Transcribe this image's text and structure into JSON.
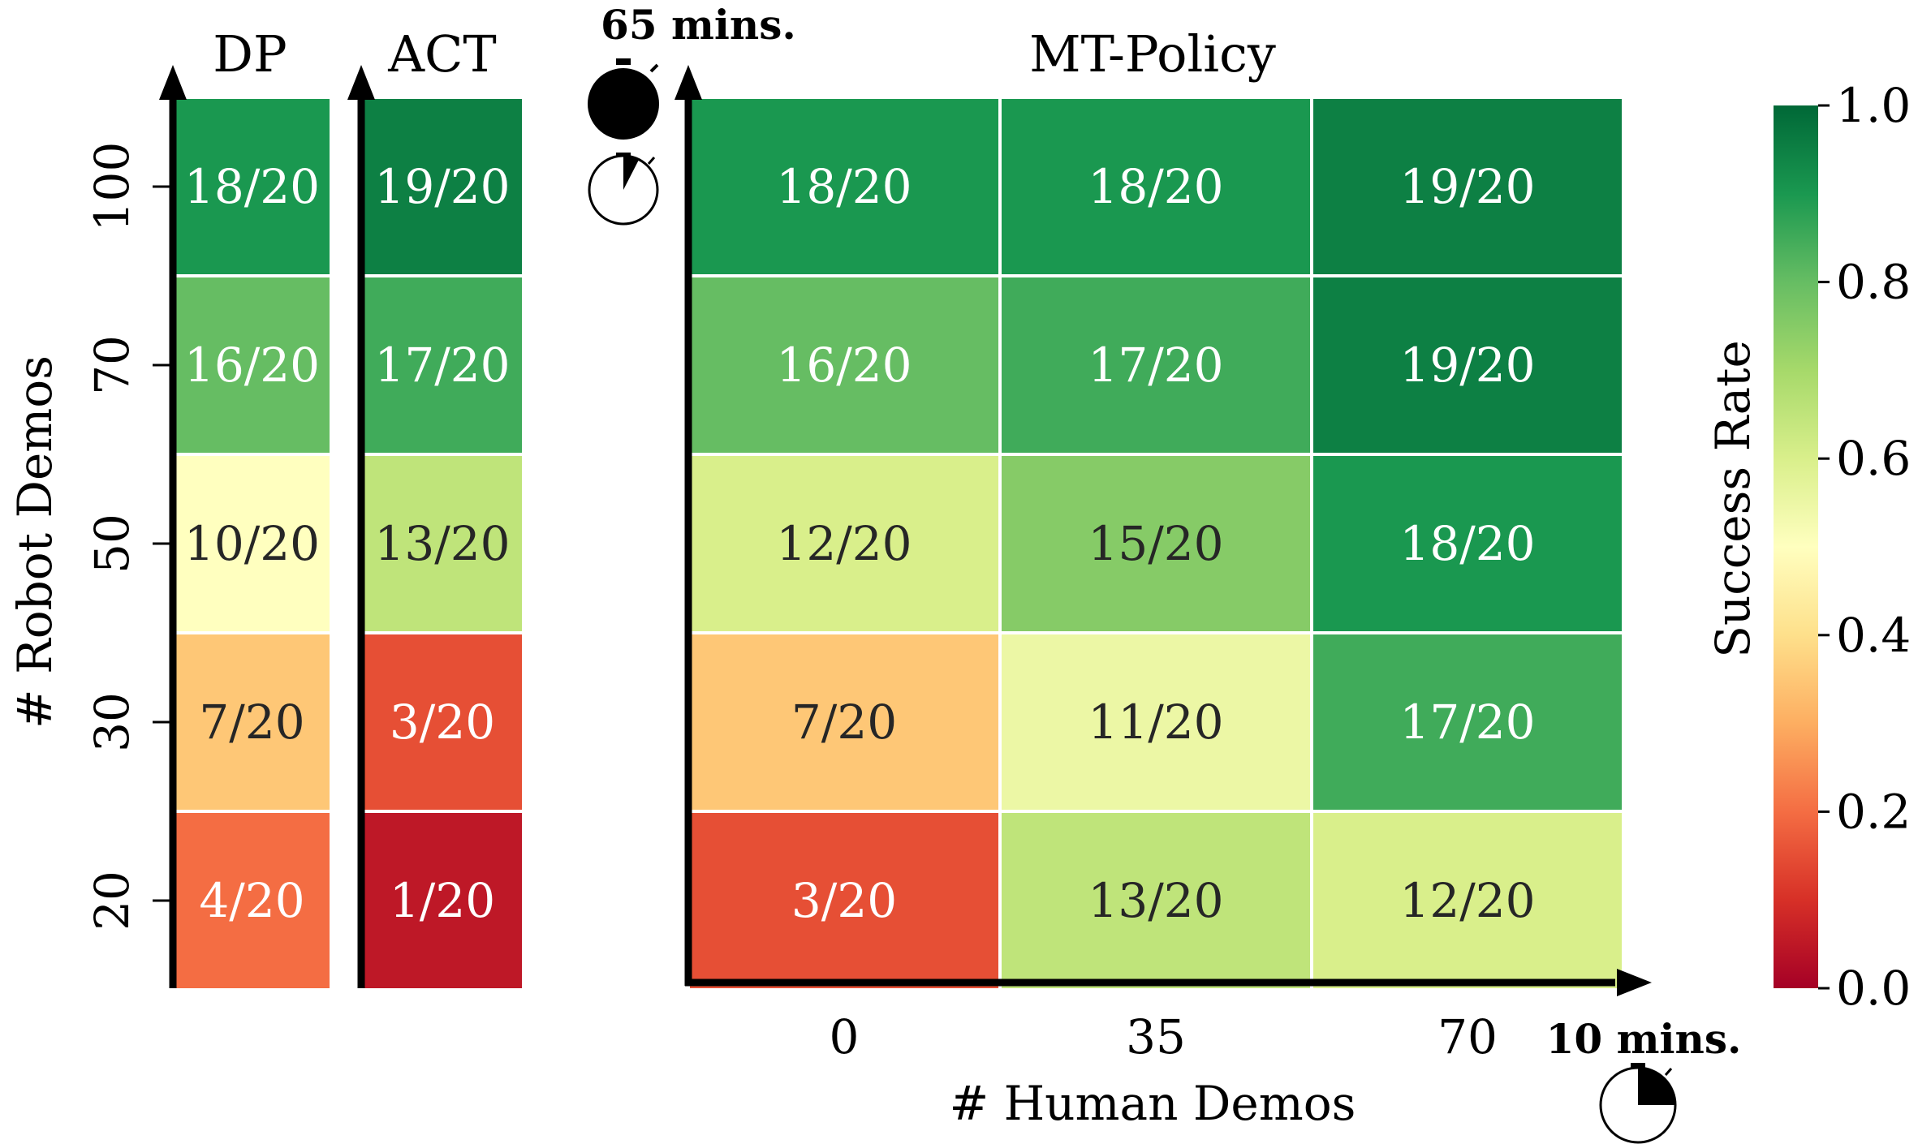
{
  "chart_data": [
    {
      "type": "heatmap",
      "title": "DP",
      "ylabel": "# Robot Demos",
      "y_categories": [
        "100",
        "70",
        "50",
        "30",
        "20"
      ],
      "cells": [
        "18/20",
        "16/20",
        "10/20",
        "7/20",
        "4/20"
      ],
      "values": [
        0.9,
        0.8,
        0.5,
        0.35,
        0.2
      ]
    },
    {
      "type": "heatmap",
      "title": "ACT",
      "y_categories": [
        "100",
        "70",
        "50",
        "30",
        "20"
      ],
      "cells": [
        "19/20",
        "17/20",
        "13/20",
        "3/20",
        "1/20"
      ],
      "values": [
        0.95,
        0.85,
        0.65,
        0.15,
        0.05
      ]
    },
    {
      "type": "heatmap",
      "title": "MT-Policy",
      "xlabel": "# Human Demos",
      "x_categories": [
        "0",
        "35",
        "70"
      ],
      "y_categories": [
        "100",
        "70",
        "50",
        "30",
        "20"
      ],
      "cells": [
        [
          "18/20",
          "18/20",
          "19/20"
        ],
        [
          "16/20",
          "17/20",
          "19/20"
        ],
        [
          "12/20",
          "15/20",
          "18/20"
        ],
        [
          "7/20",
          "11/20",
          "17/20"
        ],
        [
          "3/20",
          "13/20",
          "12/20"
        ]
      ],
      "values": [
        [
          0.9,
          0.9,
          0.95
        ],
        [
          0.8,
          0.85,
          0.95
        ],
        [
          0.6,
          0.75,
          0.9
        ],
        [
          0.35,
          0.55,
          0.85
        ],
        [
          0.15,
          0.65,
          0.6
        ]
      ]
    }
  ],
  "colorbar": {
    "label": "Success Rate",
    "ticks": [
      "0.0",
      "0.2",
      "0.4",
      "0.6",
      "0.8",
      "1.0"
    ],
    "range": [
      0,
      1
    ],
    "colormap": "RdYlGn"
  },
  "annotations": {
    "top_time": "65 mins.",
    "bottom_time": "10 mins."
  }
}
